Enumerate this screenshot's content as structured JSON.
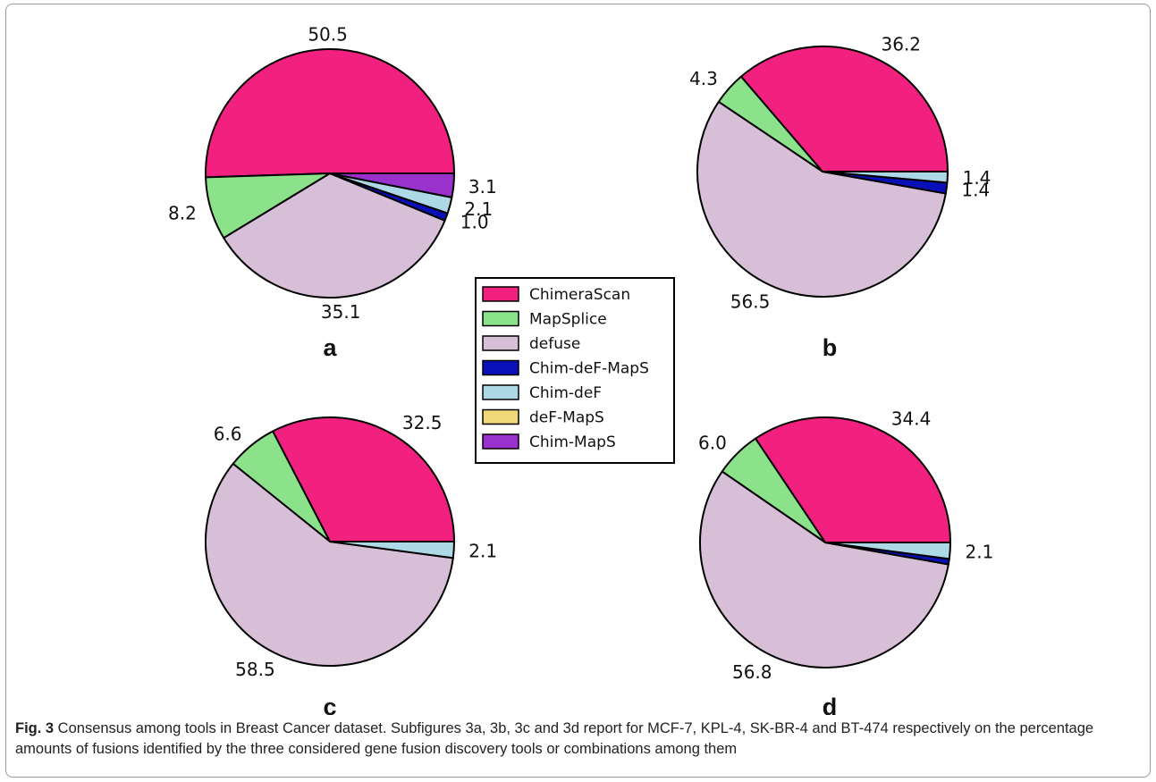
{
  "chart_data": [
    {
      "type": "pie",
      "panel_label": "a",
      "slices": [
        {
          "label": "ChimeraScan",
          "value": 50.5,
          "value_label": "50.5"
        },
        {
          "label": "MapSplice",
          "value": 8.2,
          "value_label": "8.2"
        },
        {
          "label": "defuse",
          "value": 35.1,
          "value_label": "35.1"
        },
        {
          "label": "Chim-deF-MapS",
          "value": 1.0,
          "value_label": "1.0"
        },
        {
          "label": "Chim-deF",
          "value": 2.1,
          "value_label": "2.1"
        },
        {
          "label": "deF-MapS",
          "value": 0,
          "value_label": ""
        },
        {
          "label": "Chim-MapS",
          "value": 3.1,
          "value_label": "3.1"
        }
      ]
    },
    {
      "type": "pie",
      "panel_label": "b",
      "slices": [
        {
          "label": "ChimeraScan",
          "value": 36.2,
          "value_label": "36.2"
        },
        {
          "label": "MapSplice",
          "value": 4.3,
          "value_label": "4.3"
        },
        {
          "label": "defuse",
          "value": 56.5,
          "value_label": "56.5"
        },
        {
          "label": "Chim-deF-MapS",
          "value": 1.4,
          "value_label": "1.4"
        },
        {
          "label": "Chim-deF",
          "value": 1.4,
          "value_label": "1.4"
        },
        {
          "label": "deF-MapS",
          "value": 0,
          "value_label": ""
        },
        {
          "label": "Chim-MapS",
          "value": 0,
          "value_label": ""
        }
      ]
    },
    {
      "type": "pie",
      "panel_label": "c",
      "slices": [
        {
          "label": "ChimeraScan",
          "value": 32.5,
          "value_label": "32.5"
        },
        {
          "label": "MapSplice",
          "value": 6.6,
          "value_label": "6.6"
        },
        {
          "label": "defuse",
          "value": 58.5,
          "value_label": "58.5"
        },
        {
          "label": "Chim-deF-MapS",
          "value": 0,
          "value_label": ""
        },
        {
          "label": "Chim-deF",
          "value": 2.1,
          "value_label": "2.1"
        },
        {
          "label": "deF-MapS",
          "value": 0,
          "value_label": ""
        },
        {
          "label": "Chim-MapS",
          "value": 0,
          "value_label": ""
        }
      ]
    },
    {
      "type": "pie",
      "panel_label": "d",
      "slices": [
        {
          "label": "ChimeraScan",
          "value": 34.4,
          "value_label": "34.4"
        },
        {
          "label": "MapSplice",
          "value": 6.0,
          "value_label": "6.0"
        },
        {
          "label": "defuse",
          "value": 56.8,
          "value_label": "56.8"
        },
        {
          "label": "Chim-deF-MapS",
          "value": 0.7,
          "value_label": ""
        },
        {
          "label": "Chim-deF",
          "value": 2.1,
          "value_label": "2.1"
        },
        {
          "label": "deF-MapS",
          "value": 0,
          "value_label": ""
        },
        {
          "label": "Chim-MapS",
          "value": 0,
          "value_label": ""
        }
      ]
    }
  ],
  "legend": [
    {
      "label": "ChimeraScan",
      "color": "#f2207f"
    },
    {
      "label": "MapSplice",
      "color": "#8be28b"
    },
    {
      "label": "defuse",
      "color": "#d8bfd8"
    },
    {
      "label": "Chim-deF-MapS",
      "color": "#0a10b8"
    },
    {
      "label": "Chim-deF",
      "color": "#add8e6"
    },
    {
      "label": "deF-MapS",
      "color": "#f0d878"
    },
    {
      "label": "Chim-MapS",
      "color": "#9932cc"
    }
  ],
  "caption": {
    "fig_label": "Fig. 3",
    "text": " Consensus among tools in Breast Cancer dataset. Subfigures 3a, 3b, 3c and 3d report for MCF-7, KPL-4, SK-BR-4 and BT-474 respectively on the percentage amounts of fusions identified by the three considered gene fusion discovery tools or combinations among them"
  }
}
